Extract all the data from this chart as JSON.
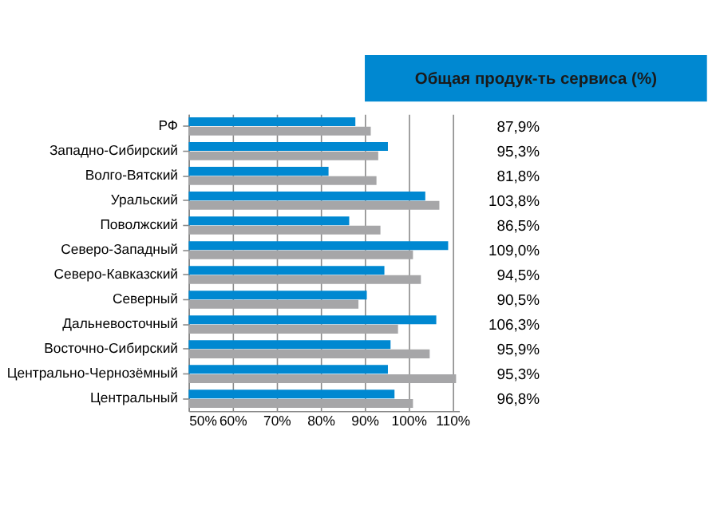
{
  "chart_data": {
    "type": "bar",
    "orientation": "horizontal",
    "title": "Общая продук-ть сервиса (%)",
    "categories": [
      "РФ",
      "Западно-Сибирский",
      "Волго-Вятский",
      "Уральский",
      "Поволжский",
      "Северо-Западный",
      "Северо-Кавказский",
      "Северный",
      "Дальневосточный",
      "Восточно-Сибирский",
      "Центрально-Чернозёмный",
      "Центральный"
    ],
    "series": [
      {
        "color": "#0088d1",
        "values": [
          87.9,
          95.3,
          81.8,
          103.8,
          86.5,
          109.0,
          94.5,
          90.5,
          106.3,
          95.9,
          95.3,
          96.8
        ],
        "value_labels": [
          "87,9%",
          "95,3%",
          "81,8%",
          "103,8%",
          "86,5%",
          "109,0%",
          "94,5%",
          "90,5%",
          "106,3%",
          "95,9%",
          "95,3%",
          "96,8%"
        ]
      },
      {
        "color": "#a6a6a8",
        "values": [
          91.4,
          93.1,
          92.7,
          107.0,
          93.6,
          101.0,
          102.8,
          88.6,
          97.6,
          104.8,
          110.8,
          101.0
        ]
      }
    ],
    "xlim": [
      50,
      111.5
    ],
    "xticks": [
      {
        "value": 50,
        "label": "50%"
      },
      {
        "value": 60,
        "label": "60%"
      },
      {
        "value": 70,
        "label": "70%"
      },
      {
        "value": 80,
        "label": "80%"
      },
      {
        "value": 90,
        "label": "90%"
      },
      {
        "value": 100,
        "label": "100%"
      },
      {
        "value": 110,
        "label": "110%"
      }
    ],
    "grid": "x"
  }
}
